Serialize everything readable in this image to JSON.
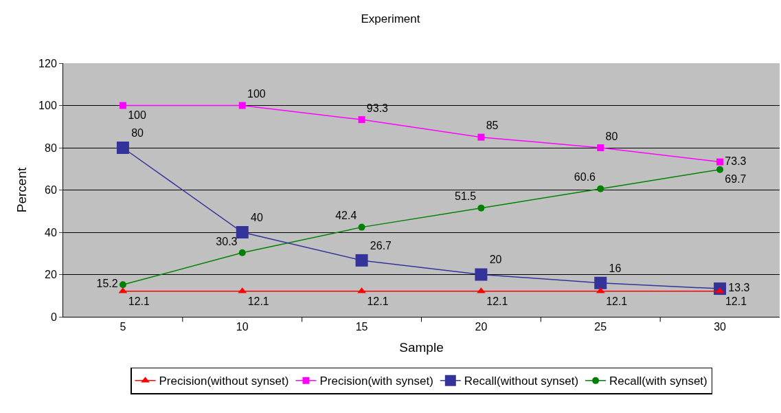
{
  "chart_data": {
    "type": "line",
    "title": "Experiment",
    "xlabel": "Sample",
    "ylabel": "Percent",
    "categories": [
      "5",
      "10",
      "15",
      "20",
      "25",
      "30"
    ],
    "series": [
      {
        "name": "Precision(without synset)",
        "color": "#ff0000",
        "marker": "triangle",
        "values": [
          12.1,
          12.1,
          12.1,
          12.1,
          12.1,
          12.1
        ]
      },
      {
        "name": "Precision(with synset)",
        "color": "#ff00ff",
        "marker": "square",
        "values": [
          100,
          100,
          93.3,
          85,
          80,
          73.3
        ]
      },
      {
        "name": "Recall(without synset)",
        "color": "#333399",
        "marker": "square",
        "values": [
          80,
          40,
          26.7,
          20,
          16,
          13.3
        ]
      },
      {
        "name": "Recall(with synset)",
        "color": "#008000",
        "marker": "circle",
        "values": [
          15.2,
          30.3,
          42.4,
          51.5,
          60.6,
          69.7
        ]
      }
    ],
    "ylim": [
      0,
      120
    ],
    "yticks": [
      0,
      20,
      40,
      60,
      80,
      100,
      120
    ],
    "grid": "y",
    "legend": "bottom",
    "data_labels": true,
    "line_style": "solid"
  }
}
